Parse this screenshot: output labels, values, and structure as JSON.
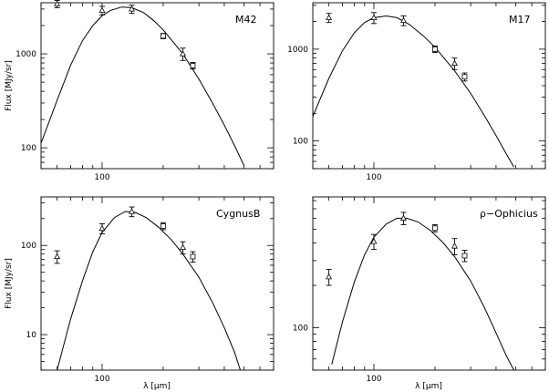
{
  "chart_data": [
    {
      "type": "scatter",
      "title": "M42",
      "xlabel": "",
      "ylabel": "Flux [MJy/sr]",
      "xscale": "log",
      "yscale": "log",
      "xlim": [
        50,
        700
      ],
      "ylim": [
        60,
        3500
      ],
      "xticks": [
        {
          "value": 100,
          "label": "100"
        }
      ],
      "yticks": [
        {
          "value": 100,
          "label": "100"
        },
        {
          "value": 1000,
          "label": "1000"
        }
      ],
      "points": [
        {
          "x": 60,
          "y": 3400,
          "err": 300,
          "marker": "triangle"
        },
        {
          "x": 100,
          "y": 2900,
          "err": 300,
          "marker": "triangle"
        },
        {
          "x": 140,
          "y": 3000,
          "err": 300,
          "marker": "triangle"
        },
        {
          "x": 200,
          "y": 1550,
          "err": 100,
          "marker": "square"
        },
        {
          "x": 250,
          "y": 1000,
          "err": 150,
          "marker": "triangle"
        },
        {
          "x": 280,
          "y": 750,
          "err": 60,
          "marker": "square"
        }
      ],
      "model_curve": [
        [
          50,
          112
        ],
        [
          60,
          320
        ],
        [
          70,
          760
        ],
        [
          80,
          1380
        ],
        [
          90,
          2000
        ],
        [
          100,
          2550
        ],
        [
          110,
          2900
        ],
        [
          125,
          3150
        ],
        [
          140,
          3100
        ],
        [
          160,
          2750
        ],
        [
          180,
          2250
        ],
        [
          200,
          1800
        ],
        [
          250,
          1000
        ],
        [
          300,
          540
        ],
        [
          350,
          300
        ],
        [
          400,
          175
        ],
        [
          450,
          105
        ],
        [
          500,
          65
        ]
      ]
    },
    {
      "type": "scatter",
      "title": "M17",
      "xlabel": "",
      "ylabel": "",
      "xscale": "log",
      "yscale": "log",
      "xlim": [
        50,
        700
      ],
      "ylim": [
        50,
        3200
      ],
      "xticks": [
        {
          "value": 100,
          "label": "100"
        }
      ],
      "yticks": [
        {
          "value": 100,
          "label": "100"
        },
        {
          "value": 1000,
          "label": "1000"
        }
      ],
      "points": [
        {
          "x": 60,
          "y": 2200,
          "err": 250,
          "marker": "triangle"
        },
        {
          "x": 100,
          "y": 2200,
          "err": 300,
          "marker": "triangle"
        },
        {
          "x": 140,
          "y": 2050,
          "err": 250,
          "marker": "triangle"
        },
        {
          "x": 200,
          "y": 1000,
          "err": 80,
          "marker": "square"
        },
        {
          "x": 250,
          "y": 700,
          "err": 100,
          "marker": "triangle"
        },
        {
          "x": 280,
          "y": 500,
          "err": 50,
          "marker": "square"
        }
      ],
      "model_curve": [
        [
          50,
          185
        ],
        [
          60,
          480
        ],
        [
          70,
          960
        ],
        [
          80,
          1500
        ],
        [
          90,
          1950
        ],
        [
          100,
          2200
        ],
        [
          115,
          2300
        ],
        [
          130,
          2200
        ],
        [
          150,
          1850
        ],
        [
          175,
          1400
        ],
        [
          200,
          1050
        ],
        [
          250,
          580
        ],
        [
          300,
          330
        ],
        [
          350,
          190
        ],
        [
          400,
          115
        ],
        [
          450,
          72
        ],
        [
          490,
          52
        ]
      ]
    },
    {
      "type": "scatter",
      "title": "CygnusB",
      "xlabel": "λ [μm]",
      "ylabel": "Flux [MJy/sr]",
      "xscale": "log",
      "yscale": "log",
      "xlim": [
        50,
        700
      ],
      "ylim": [
        4,
        350
      ],
      "xticks": [
        {
          "value": 100,
          "label": "100"
        }
      ],
      "yticks": [
        {
          "value": 10,
          "label": "10"
        },
        {
          "value": 100,
          "label": "100"
        }
      ],
      "points": [
        {
          "x": 60,
          "y": 75,
          "err": 12,
          "marker": "triangle"
        },
        {
          "x": 100,
          "y": 155,
          "err": 20,
          "marker": "triangle"
        },
        {
          "x": 140,
          "y": 240,
          "err": 30,
          "marker": "triangle"
        },
        {
          "x": 200,
          "y": 165,
          "err": 15,
          "marker": "square"
        },
        {
          "x": 250,
          "y": 95,
          "err": 15,
          "marker": "triangle"
        },
        {
          "x": 280,
          "y": 75,
          "err": 10,
          "marker": "square"
        }
      ],
      "model_curve": [
        [
          60,
          4
        ],
        [
          65,
          8
        ],
        [
          70,
          15
        ],
        [
          80,
          40
        ],
        [
          90,
          85
        ],
        [
          100,
          140
        ],
        [
          115,
          205
        ],
        [
          130,
          240
        ],
        [
          145,
          235
        ],
        [
          165,
          205
        ],
        [
          190,
          160
        ],
        [
          220,
          115
        ],
        [
          250,
          80
        ],
        [
          300,
          44
        ],
        [
          350,
          23
        ],
        [
          400,
          12
        ],
        [
          450,
          6.3
        ],
        [
          480,
          4
        ]
      ]
    },
    {
      "type": "scatter",
      "title": "ρ−Ophicius",
      "xlabel": "λ [μm]",
      "ylabel": "",
      "xscale": "log",
      "yscale": "log",
      "xlim": [
        50,
        700
      ],
      "ylim": [
        50,
        850
      ],
      "xticks": [
        {
          "value": 100,
          "label": "100"
        }
      ],
      "yticks": [
        {
          "value": 100,
          "label": "100"
        }
      ],
      "points": [
        {
          "x": 60,
          "y": 230,
          "err": 30,
          "marker": "triangle"
        },
        {
          "x": 100,
          "y": 410,
          "err": 50,
          "marker": "triangle"
        },
        {
          "x": 140,
          "y": 600,
          "err": 60,
          "marker": "triangle"
        },
        {
          "x": 200,
          "y": 510,
          "err": 30,
          "marker": "square"
        },
        {
          "x": 250,
          "y": 380,
          "err": 50,
          "marker": "triangle"
        },
        {
          "x": 280,
          "y": 325,
          "err": 30,
          "marker": "square"
        }
      ],
      "model_curve": [
        [
          62,
          55
        ],
        [
          70,
          110
        ],
        [
          80,
          210
        ],
        [
          90,
          330
        ],
        [
          100,
          440
        ],
        [
          115,
          545
        ],
        [
          130,
          600
        ],
        [
          145,
          600
        ],
        [
          165,
          565
        ],
        [
          190,
          490
        ],
        [
          220,
          400
        ],
        [
          250,
          320
        ],
        [
          300,
          215
        ],
        [
          350,
          140
        ],
        [
          400,
          92
        ],
        [
          450,
          63
        ],
        [
          490,
          50
        ]
      ]
    }
  ]
}
